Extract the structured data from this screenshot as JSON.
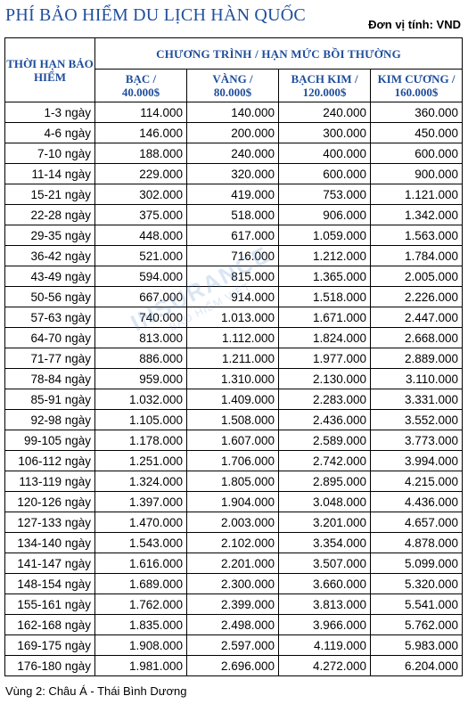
{
  "title": "PHÍ BẢO HIỂM DU LỊCH HÀN QUỐC",
  "unit_note": "Đơn vị tính: VND",
  "header": {
    "period": "THỜI HẠN BẢO HIỂM",
    "program": "CHƯƠNG TRÌNH / HẠN MỨC BỒI THƯỜNG",
    "tiers": [
      {
        "name": "BẠC /",
        "limit": "40.000$"
      },
      {
        "name": "VÀNG /",
        "limit": "80.000$"
      },
      {
        "name": "BẠCH KIM /",
        "limit": "120.000$"
      },
      {
        "name": "KIM CƯƠNG /",
        "limit": "160.000$"
      }
    ]
  },
  "rows": [
    [
      "1-3 ngày",
      "114.000",
      "140.000",
      "240.000",
      "360.000"
    ],
    [
      "4-6 ngày",
      "146.000",
      "200.000",
      "300.000",
      "450.000"
    ],
    [
      "7-10 ngày",
      "188.000",
      "240.000",
      "400.000",
      "600.000"
    ],
    [
      "11-14 ngày",
      "229.000",
      "320.000",
      "600.000",
      "900.000"
    ],
    [
      "15-21 ngày",
      "302.000",
      "419.000",
      "753.000",
      "1.121.000"
    ],
    [
      "22-28 ngày",
      "375.000",
      "518.000",
      "906.000",
      "1.342.000"
    ],
    [
      "29-35 ngày",
      "448.000",
      "617.000",
      "1.059.000",
      "1.563.000"
    ],
    [
      "36-42 ngày",
      "521.000",
      "716.000",
      "1.212.000",
      "1.784.000"
    ],
    [
      "43-49 ngày",
      "594.000",
      "815.000",
      "1.365.000",
      "2.005.000"
    ],
    [
      "50-56 ngày",
      "667.000",
      "914.000",
      "1.518.000",
      "2.226.000"
    ],
    [
      "57-63 ngày",
      "740.000",
      "1.013.000",
      "1.671.000",
      "2.447.000"
    ],
    [
      "64-70 ngày",
      "813.000",
      "1.112.000",
      "1.824.000",
      "2.668.000"
    ],
    [
      "71-77 ngày",
      "886.000",
      "1.211.000",
      "1.977.000",
      "2.889.000"
    ],
    [
      "78-84 ngày",
      "959.000",
      "1.310.000",
      "2.130.000",
      "3.110.000"
    ],
    [
      "85-91 ngày",
      "1.032.000",
      "1.409.000",
      "2.283.000",
      "3.331.000"
    ],
    [
      "92-98 ngày",
      "1.105.000",
      "1.508.000",
      "2.436.000",
      "3.552.000"
    ],
    [
      "99-105 ngày",
      "1.178.000",
      "1.607.000",
      "2.589.000",
      "3.773.000"
    ],
    [
      "106-112 ngày",
      "1.251.000",
      "1.706.000",
      "2.742.000",
      "3.994.000"
    ],
    [
      "113-119 ngày",
      "1.324.000",
      "1.805.000",
      "2.895.000",
      "4.215.000"
    ],
    [
      "120-126 ngày",
      "1.397.000",
      "1.904.000",
      "3.048.000",
      "4.436.000"
    ],
    [
      "127-133 ngày",
      "1.470.000",
      "2.003.000",
      "3.201.000",
      "4.657.000"
    ],
    [
      "134-140 ngày",
      "1.543.000",
      "2.102.000",
      "3.354.000",
      "4.878.000"
    ],
    [
      "141-147 ngày",
      "1.616.000",
      "2.201.000",
      "3.507.000",
      "5.099.000"
    ],
    [
      "148-154 ngày",
      "1.689.000",
      "2.300.000",
      "3.660.000",
      "5.320.000"
    ],
    [
      "155-161 ngày",
      "1.762.000",
      "2.399.000",
      "3.813.000",
      "5.541.000"
    ],
    [
      "162-168 ngày",
      "1.835.000",
      "2.498.000",
      "3.966.000",
      "5.762.000"
    ],
    [
      "169-175 ngày",
      "1.908.000",
      "2.597.000",
      "4.119.000",
      "5.983.000"
    ],
    [
      "176-180 ngày",
      "1.981.000",
      "2.696.000",
      "4.272.000",
      "6.204.000"
    ]
  ],
  "footer": "Vùng 2: Châu Á - Thái Bình Dương",
  "watermark": {
    "line1": "INSURANCE",
    "line2": "BẢO HIỂM VIỆT"
  },
  "colors": {
    "heading": "#1f4e9c",
    "watermark": "#5b8fd1"
  }
}
